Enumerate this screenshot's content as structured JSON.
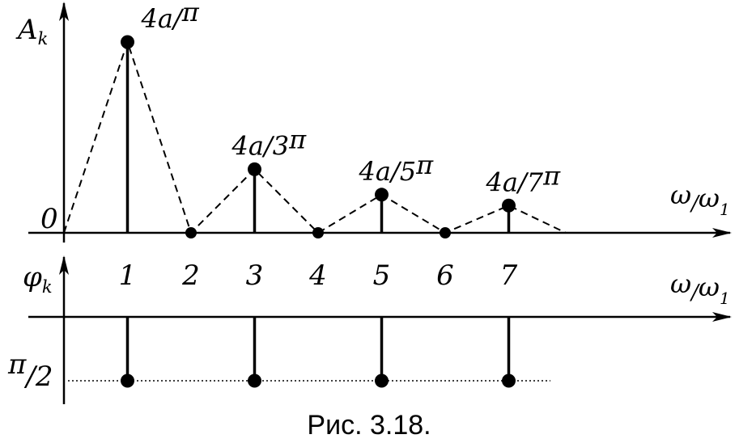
{
  "chart_data": [
    {
      "type": "stem",
      "ylabel_base": "A",
      "ylabel_sub": "k",
      "xlabel_num": "ω",
      "xlabel_slash": "/",
      "xlabel_den": "ω",
      "xlabel_den_sub": "1",
      "origin_label": "0",
      "envelope": "dashed",
      "x_ticks": [
        "1",
        "2",
        "3",
        "4",
        "5",
        "6",
        "7"
      ],
      "points": [
        {
          "x": 0,
          "y": 0
        },
        {
          "x": 1,
          "y": 1.0,
          "label": "4a/",
          "label_sup": "π"
        },
        {
          "x": 2,
          "y": 0
        },
        {
          "x": 3,
          "y": 0.3333,
          "label": "4a/3",
          "label_sup": "π"
        },
        {
          "x": 4,
          "y": 0
        },
        {
          "x": 5,
          "y": 0.2,
          "label": "4a/5",
          "label_sup": "π"
        },
        {
          "x": 6,
          "y": 0
        },
        {
          "x": 7,
          "y": 0.1429,
          "label": "4a/7",
          "label_sup": "π"
        },
        {
          "x": 7.9,
          "y": 0
        }
      ]
    },
    {
      "type": "stem",
      "ylabel_base": "φ",
      "ylabel_sub": "k",
      "xlabel_num": "ω",
      "xlabel_slash": "/",
      "xlabel_den": "ω",
      "xlabel_den_sub": "1",
      "level_label_num": "π",
      "level_label_den": "/2",
      "level_line": "dotted",
      "points": [
        {
          "x": 1,
          "y": "π/2"
        },
        {
          "x": 3,
          "y": "π/2"
        },
        {
          "x": 5,
          "y": "π/2"
        },
        {
          "x": 7,
          "y": "π/2"
        }
      ]
    }
  ],
  "caption": "Рис. 3.18."
}
